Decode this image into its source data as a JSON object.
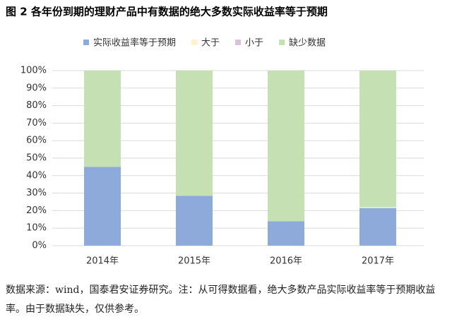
{
  "chart_data": {
    "type": "stacked-bar",
    "title": "图 2 各年份到期的理财产品中有数据的绝大多数实际收益率等于预期",
    "categories": [
      "2014年",
      "2015年",
      "2016年",
      "2017年"
    ],
    "series": [
      {
        "name": "实际收益率等于预期",
        "color": "#8eaadb",
        "values": [
          45,
          28.5,
          14,
          21.5
        ]
      },
      {
        "name": "大于",
        "color": "#fff2cc",
        "values": [
          0,
          0,
          0,
          0.5
        ]
      },
      {
        "name": "小于",
        "color": "#d9c2d9",
        "values": [
          0,
          0,
          0,
          0
        ]
      },
      {
        "name": "缺少数据",
        "color": "#c5e0b3",
        "values": [
          55,
          71.5,
          86,
          78
        ]
      }
    ],
    "ylim": [
      0,
      100
    ],
    "yticks": [
      {
        "value": 0,
        "label": "0%"
      },
      {
        "value": 10,
        "label": "10%"
      },
      {
        "value": 20,
        "label": "20%"
      },
      {
        "value": 30,
        "label": "30%"
      },
      {
        "value": 40,
        "label": "40%"
      },
      {
        "value": 50,
        "label": "50%"
      },
      {
        "value": 60,
        "label": "60%"
      },
      {
        "value": 70,
        "label": "70%"
      },
      {
        "value": 80,
        "label": "80%"
      },
      {
        "value": 90,
        "label": "90%"
      },
      {
        "value": 100,
        "label": "100%"
      }
    ],
    "grid": true,
    "legend": "top",
    "note": "数据来源：wind，国泰君安证券研究。注：从可得数据看，绝大多数产品实际收益率等于预期收益率。由于数据缺失，仅供参考。"
  }
}
